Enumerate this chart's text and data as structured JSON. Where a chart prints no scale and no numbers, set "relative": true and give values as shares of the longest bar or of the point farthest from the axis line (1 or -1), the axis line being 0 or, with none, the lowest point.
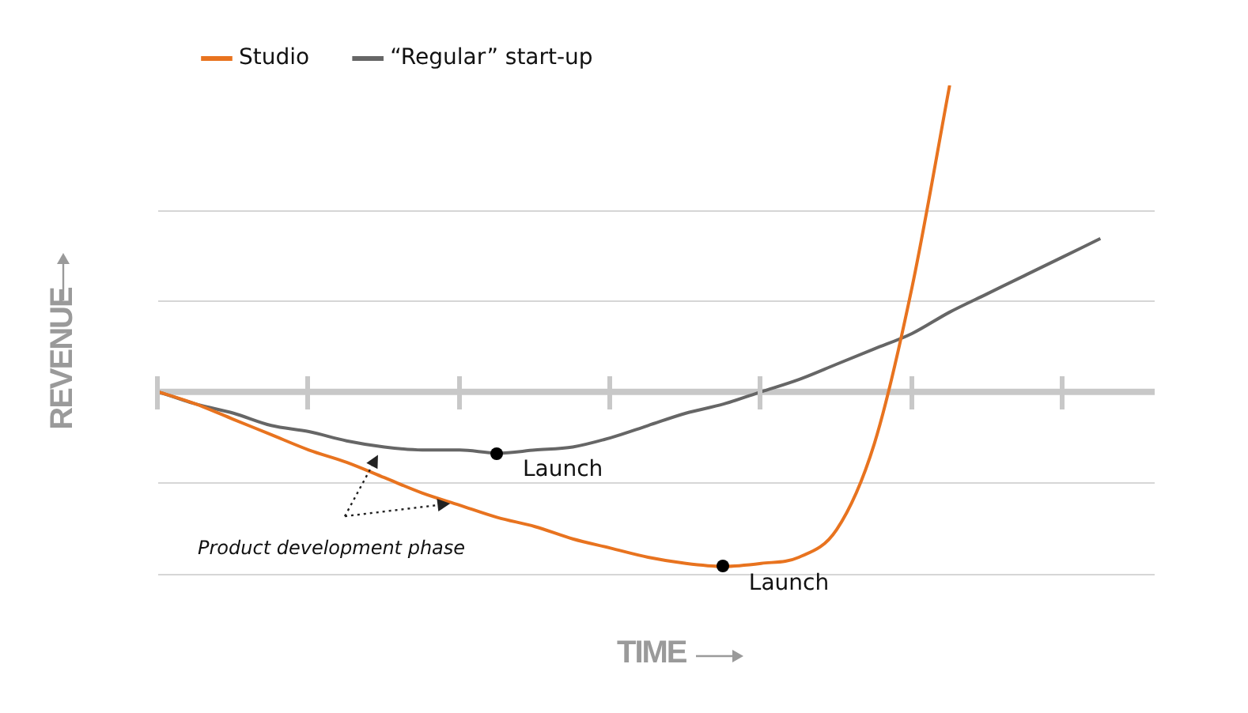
{
  "chart_data": {
    "type": "line",
    "relative": true,
    "categories": [
      null,
      null,
      null,
      null,
      null,
      null,
      null,
      null,
      null,
      null,
      null,
      null,
      null,
      null,
      null,
      null,
      null,
      null,
      null,
      null,
      null,
      null,
      null,
      null,
      null,
      null
    ],
    "series": [
      {
        "name": "Studio",
        "color": "#e8731f",
        "values": [
          0,
          -0.04,
          -0.09,
          -0.14,
          -0.19,
          -0.23,
          -0.28,
          -0.33,
          -0.37,
          -0.41,
          -0.44,
          -0.48,
          -0.51,
          -0.54,
          -0.56,
          -0.57,
          -0.56,
          -0.54,
          -0.45,
          -0.17,
          0.34,
          1,
          null,
          null,
          null,
          null
        ]
      },
      {
        "name": "“Regular” start-up",
        "color": "#666666",
        "values": [
          0,
          -0.04,
          -0.07,
          -0.11,
          -0.13,
          -0.16,
          -0.18,
          -0.19,
          -0.19,
          -0.2,
          -0.19,
          -0.18,
          -0.15,
          -0.11,
          -0.07,
          -0.04,
          0,
          0.04,
          0.09,
          0.14,
          0.19,
          0.26,
          0.32,
          0.38,
          0.44,
          0.5
        ]
      }
    ],
    "xlabel": "TIME",
    "ylabel": "REVENUE",
    "legend": "top left",
    "grid": true,
    "marker": "none",
    "line_style": "solid",
    "annotations": [
      "Launch",
      "Launch",
      "Product development phase"
    ]
  }
}
